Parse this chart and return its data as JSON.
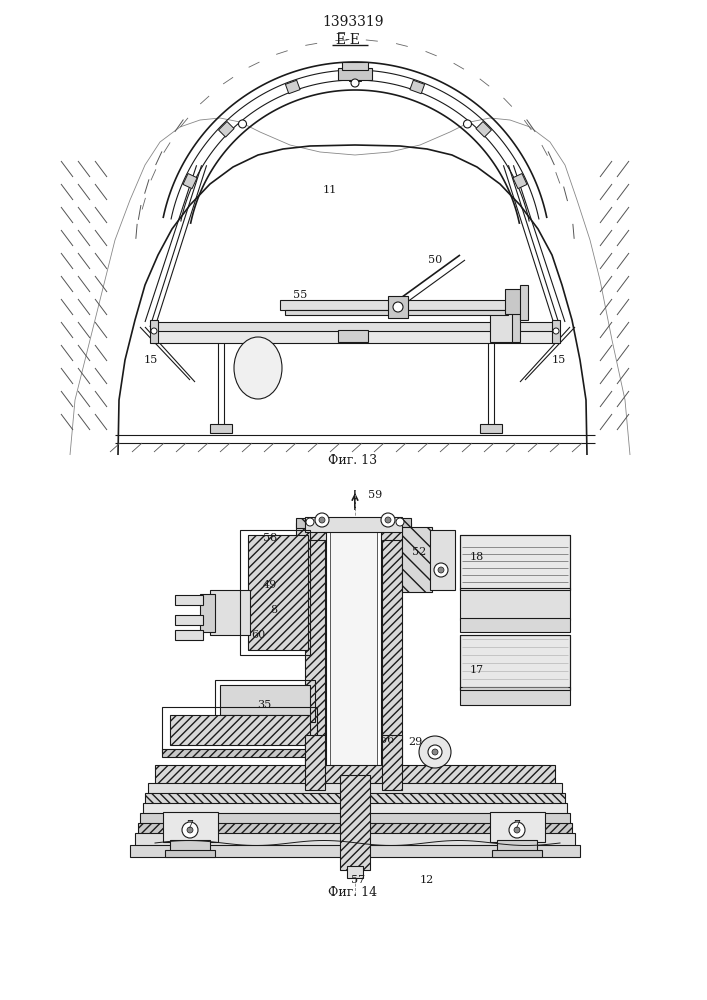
{
  "title": "1393319",
  "fig13_label": "Фиг. 13",
  "fig14_label": "Фиг. 14",
  "bg_color": "#ffffff",
  "line_color": "#1a1a1a"
}
